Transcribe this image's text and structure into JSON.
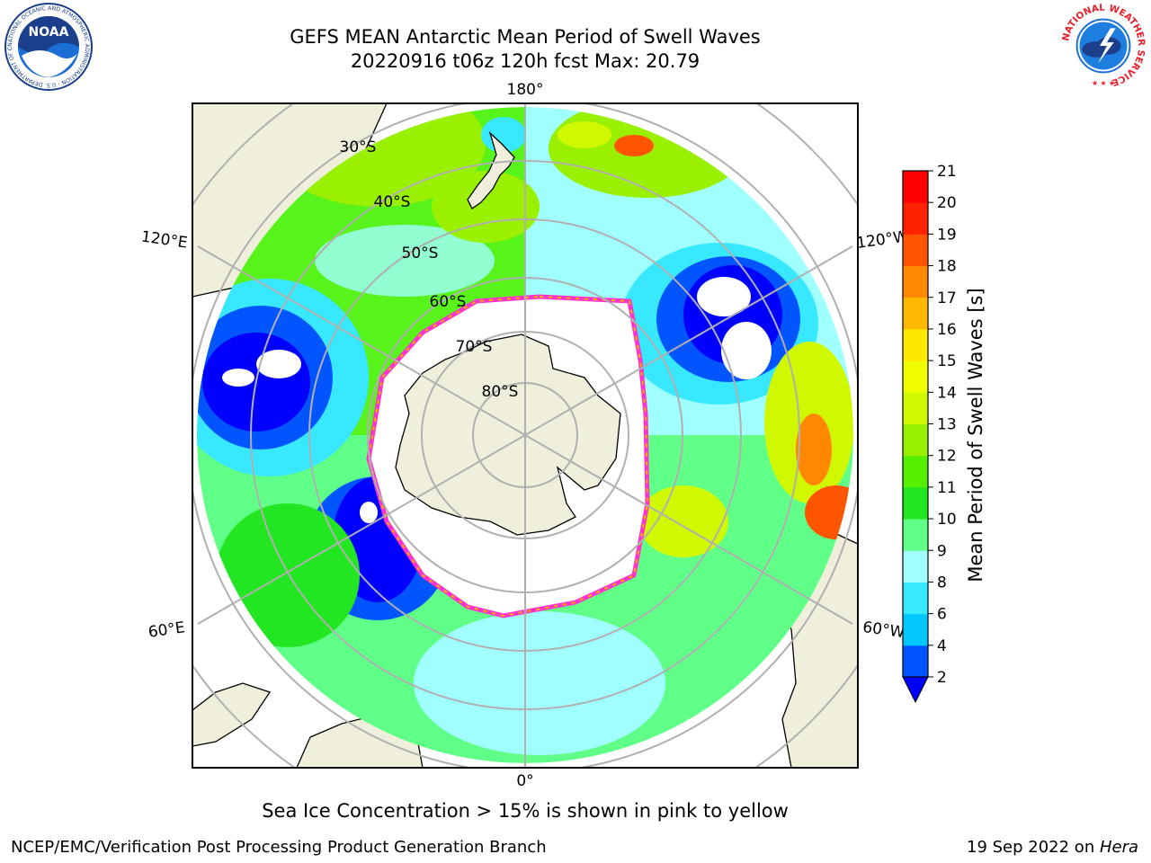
{
  "header": {
    "title_line1": "GEFS MEAN Antarctic Mean Period of Swell Waves",
    "title_line2": "20220916 t06z 120h fcst   Max: 20.79"
  },
  "logos": {
    "noaa_text": "NOAA",
    "noaa_ring_text": "NATIONAL OCEANIC AND ATMOSPHERIC ADMINISTRATION · U.S. DEPARTMENT OF COMMERCE",
    "nws_ring_text": "NATIONAL WEATHER SERVICE"
  },
  "map": {
    "projection": "south-polar-stereographic",
    "longitude_labels": [
      "180°",
      "120°E",
      "120°W",
      "60°E",
      "60°W",
      "0°"
    ],
    "latitude_labels": [
      "30°S",
      "40°S",
      "50°S",
      "60°S",
      "70°S",
      "80°S"
    ],
    "colors": {
      "land": "#efefdb",
      "ice_edge": "#ff33cc",
      "ice_inner": "#ffb000",
      "gridline": "#b0b0b0"
    }
  },
  "colorbar": {
    "label": "Mean Period of Swell Waves [s]",
    "ticks": [
      "2",
      "4",
      "6",
      "8",
      "9",
      "10",
      "11",
      "12",
      "13",
      "14",
      "15",
      "16",
      "17",
      "18",
      "19",
      "20",
      "21"
    ],
    "colors": [
      "#0055ff",
      "#00c8ff",
      "#38e8ff",
      "#a0ffff",
      "#60ff88",
      "#22e622",
      "#55f000",
      "#99f000",
      "#d0f800",
      "#f0ff00",
      "#ffe800",
      "#ffb800",
      "#ff8800",
      "#ff5500",
      "#ff2200",
      "#ff0000"
    ],
    "extend_color": "#0000ff"
  },
  "footer": {
    "note": "Sea Ice Concentration > 15% is shown in pink to yellow",
    "credit": "NCEP/EMC/Verification Post Processing Product Generation Branch",
    "date": "19 Sep 2022 on ",
    "machine": "Hera"
  }
}
